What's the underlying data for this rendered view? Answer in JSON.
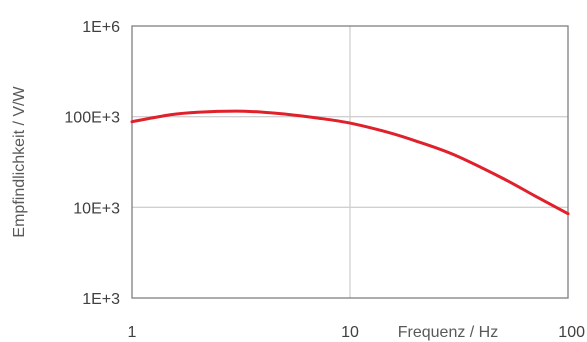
{
  "chart_data": {
    "type": "line",
    "title": "",
    "xlabel": "Frequenz / Hz",
    "ylabel": "Empfindlichkeit / V/W",
    "x_scale": "log",
    "y_scale": "log",
    "xlim": [
      1,
      100
    ],
    "ylim": [
      1000,
      1000000
    ],
    "x_ticks": [
      1,
      10,
      100
    ],
    "x_tick_labels": [
      "1",
      "10",
      "100"
    ],
    "y_ticks": [
      1000,
      10000,
      100000,
      1000000
    ],
    "y_tick_labels": [
      "1E+3",
      "10E+3",
      "100E+3",
      "1E+6"
    ],
    "grid": true,
    "legend": "none",
    "series": [
      {
        "color": "#e0202a",
        "x": [
          1,
          1.5,
          2,
          3,
          4,
          5,
          7,
          10,
          15,
          20,
          30,
          50,
          70,
          100
        ],
        "y": [
          88000,
          105000,
          112000,
          115000,
          112000,
          107000,
          97000,
          85000,
          67000,
          54000,
          38000,
          21000,
          13500,
          8500
        ]
      }
    ]
  }
}
